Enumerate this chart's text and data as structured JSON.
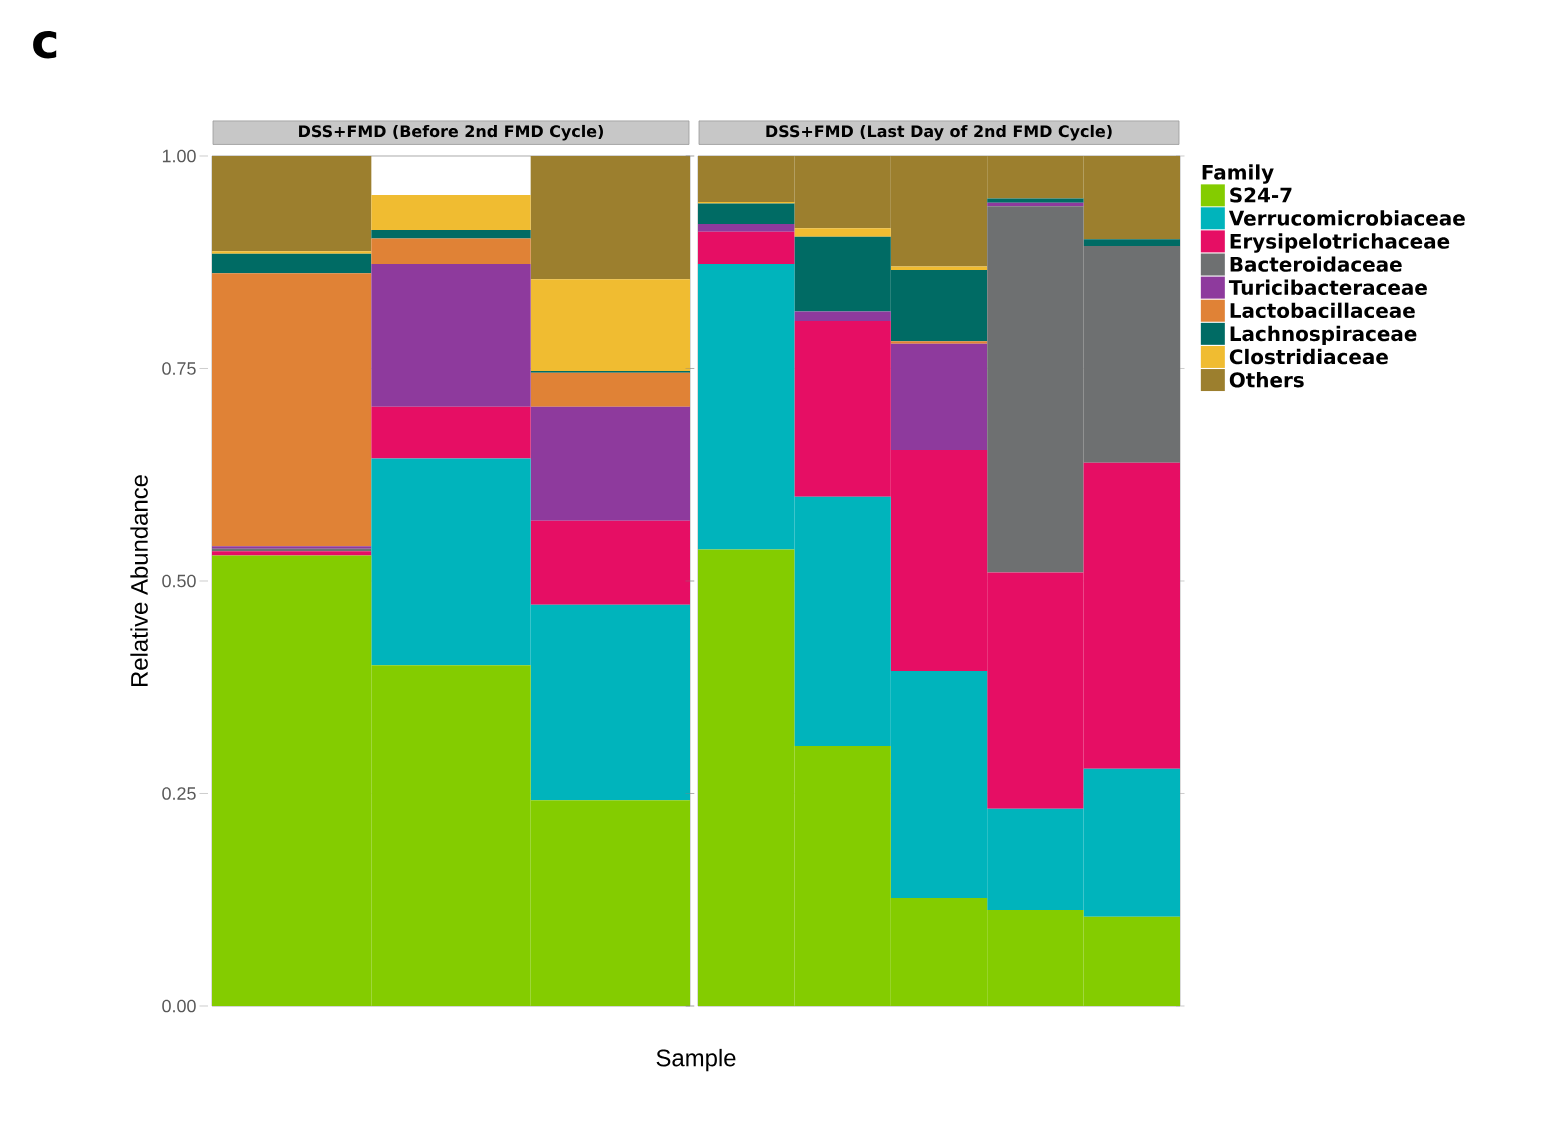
{
  "chart_data": [
    {
      "type": "bar",
      "stacked": true,
      "title": "DSS+FMD (Before 2nd FMD Cycle)",
      "ylabel": "Relative Abundance",
      "xlabel": "Sample",
      "annotations": [
        "c"
      ],
      "categories": [
        null,
        null,
        null
      ],
      "ylim": [
        0,
        1
      ],
      "yticks": [
        {
          "value": 0,
          "label": "0.00"
        },
        {
          "value": 0.25,
          "label": "0.25"
        },
        {
          "value": 0.5,
          "label": "0.50"
        },
        {
          "value": 0.75,
          "label": "0.75"
        },
        {
          "value": 1,
          "label": "1.00"
        }
      ],
      "grid": "y",
      "tick_labels": "y",
      "series": [
        {
          "color": "#84cc00",
          "values": [
            0.53,
            0.401,
            0.242
          ]
        },
        {
          "color": "#00b4bc",
          "values": [
            0,
            0.243,
            0.23
          ]
        },
        {
          "color": "#e60e64",
          "values": [
            0.005,
            0.061,
            0.099
          ]
        },
        {
          "color": "#6e7071",
          "values": [
            0.003,
            0,
            0
          ]
        },
        {
          "color": "#8e3a9d",
          "values": [
            0.003,
            0.168,
            0.134
          ]
        },
        {
          "color": "#e08236",
          "values": [
            0.321,
            0.03,
            0.04
          ]
        },
        {
          "color": "#006b64",
          "values": [
            0.023,
            0.01,
            0.002
          ]
        },
        {
          "color": "#f0bc31",
          "values": [
            0.003,
            0.041,
            0.108
          ]
        },
        {
          "color": "#9c7f2e",
          "values": [
            0.112,
            0,
            0.145
          ]
        }
      ]
    },
    {
      "type": "bar",
      "stacked": true,
      "title": "DSS+FMD (Last Day of 2nd FMD Cycle)",
      "legend_title": "Family",
      "legend": "right",
      "categories": [
        null,
        null,
        null,
        null,
        null
      ],
      "ylim": [
        0,
        1
      ],
      "yticks": [
        0,
        0.25,
        0.5,
        0.75,
        1
      ],
      "grid": "y",
      "tick_labels": false,
      "series": [
        {
          "name": "S24-7",
          "color": "#84cc00",
          "values": [
            0.537,
            0.306,
            0.127,
            0.113,
            0.105
          ]
        },
        {
          "name": "Verrucomicrobiaceae",
          "color": "#00b4bc",
          "values": [
            0.336,
            0.293,
            0.267,
            0.119,
            0.174
          ]
        },
        {
          "name": "Erysipelotrichaceae",
          "color": "#e60e64",
          "values": [
            0.038,
            0.207,
            0.26,
            0.278,
            0.36
          ]
        },
        {
          "name": "Bacteroidaceae",
          "color": "#6e7071",
          "values": [
            0,
            0,
            0,
            0.431,
            0.255
          ]
        },
        {
          "name": "Turicibacteraceae",
          "color": "#8e3a9d",
          "values": [
            0.009,
            0.011,
            0.125,
            0.004,
            0
          ]
        },
        {
          "name": "Lactobacillaceae",
          "color": "#e08236",
          "values": [
            0,
            0,
            0.003,
            0,
            0
          ]
        },
        {
          "name": "Lachnospiraceae",
          "color": "#006b64",
          "values": [
            0.024,
            0.088,
            0.084,
            0.005,
            0.008
          ]
        },
        {
          "name": "Clostridiaceae",
          "color": "#f0bc31",
          "values": [
            0.002,
            0.01,
            0.004,
            0,
            0
          ]
        },
        {
          "name": "Others",
          "color": "#9c7f2e",
          "values": [
            0.054,
            0.085,
            0.13,
            0.05,
            0.098
          ]
        }
      ]
    }
  ]
}
